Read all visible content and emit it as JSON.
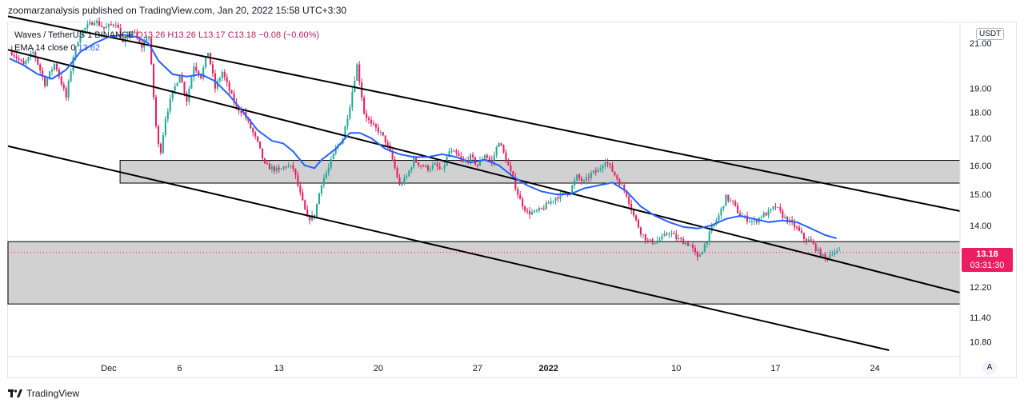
{
  "header": {
    "text": "zoomarzanalysis published on TradingView.com, Jan 20, 2022 15:58 UTC+3:30"
  },
  "legend": {
    "symbol": "Waves / TetherUS",
    "exchange_frag": "1",
    "exchange": "BINANCE",
    "open": "O13.26",
    "high": "H13.26",
    "low": "L13.17",
    "close": "C13.18",
    "change": "−0.08 (−0.60%)",
    "ema_label": "EMA 14 close 0",
    "ema_value": "13.62"
  },
  "currency": "USDT",
  "last_price": {
    "price": "13.18",
    "countdown": "03:31:30"
  },
  "auto_label": "A",
  "footer": {
    "brand": "TradingView"
  },
  "colors": {
    "up": "#26a69a",
    "down": "#e91e63",
    "ema": "#2962ff",
    "zone": "#d1d1d1",
    "line": "#000000"
  },
  "chart_data": {
    "type": "candlestick",
    "symbol": "WAVESUSDT",
    "timeframe": "4h",
    "x_ticks": [
      {
        "label": "Dec",
        "day": 0
      },
      {
        "label": "6",
        "day": 5
      },
      {
        "label": "13",
        "day": 12
      },
      {
        "label": "20",
        "day": 19
      },
      {
        "label": "27",
        "day": 26
      },
      {
        "label": "2022",
        "day": 31,
        "bold": true
      },
      {
        "label": "10",
        "day": 40
      },
      {
        "label": "17",
        "day": 47
      },
      {
        "label": "24",
        "day": 54
      }
    ],
    "y_ticks": [
      "21.00",
      "19.00",
      "18.00",
      "17.00",
      "16.00",
      "15.00",
      "14.00",
      "12.20",
      "11.40",
      "10.80"
    ],
    "y_scale": "log",
    "x_range_days": [
      -7.1,
      60.0
    ],
    "y_range": [
      10.45,
      22.0
    ],
    "last_price": 13.18,
    "zones": [
      {
        "from_day": 0.8,
        "to_day": 60.0,
        "low": 15.38,
        "high": 16.18
      },
      {
        "from_day": -7.1,
        "to_day": 60.0,
        "low": 11.75,
        "high": 13.5
      }
    ],
    "channel_lines": [
      {
        "x1": -7.1,
        "y1": 22.3,
        "x2": 60.0,
        "y2": 14.45
      },
      {
        "x1": -7.1,
        "y1": 20.7,
        "x2": 60.0,
        "y2": 12.05
      },
      {
        "x1": -7.1,
        "y1": 16.7,
        "x2": 55.0,
        "y2": 10.6
      }
    ],
    "ema14": [
      [
        -7.0,
        20.3
      ],
      [
        -6.0,
        20.0
      ],
      [
        -5.0,
        19.6
      ],
      [
        -4.0,
        19.4
      ],
      [
        -3.0,
        19.8
      ],
      [
        -2.0,
        20.6
      ],
      [
        -1.0,
        21.0
      ],
      [
        0.0,
        21.3
      ],
      [
        1.0,
        21.4
      ],
      [
        2.0,
        21.3
      ],
      [
        2.8,
        21.0
      ],
      [
        3.5,
        20.2
      ],
      [
        4.5,
        19.6
      ],
      [
        5.5,
        19.5
      ],
      [
        6.5,
        19.6
      ],
      [
        7.5,
        19.3
      ],
      [
        8.5,
        18.7
      ],
      [
        9.5,
        18.0
      ],
      [
        10.5,
        17.3
      ],
      [
        11.5,
        16.9
      ],
      [
        12.3,
        16.8
      ],
      [
        13.0,
        16.5
      ],
      [
        13.8,
        16.0
      ],
      [
        14.5,
        15.9
      ],
      [
        15.0,
        16.2
      ],
      [
        16.0,
        16.6
      ],
      [
        17.0,
        17.2
      ],
      [
        17.7,
        17.2
      ],
      [
        18.5,
        17.0
      ],
      [
        19.5,
        16.6
      ],
      [
        20.5,
        16.4
      ],
      [
        21.5,
        16.3
      ],
      [
        22.5,
        16.3
      ],
      [
        23.5,
        16.4
      ],
      [
        24.5,
        16.3
      ],
      [
        25.5,
        16.1
      ],
      [
        26.5,
        16.2
      ],
      [
        27.5,
        16.0
      ],
      [
        28.5,
        15.6
      ],
      [
        29.5,
        15.3
      ],
      [
        30.5,
        15.1
      ],
      [
        31.5,
        15.0
      ],
      [
        32.5,
        15.0
      ],
      [
        33.5,
        15.2
      ],
      [
        34.5,
        15.3
      ],
      [
        35.5,
        15.4
      ],
      [
        36.5,
        15.1
      ],
      [
        37.5,
        14.6
      ],
      [
        38.5,
        14.3
      ],
      [
        39.5,
        14.1
      ],
      [
        40.5,
        13.95
      ],
      [
        41.5,
        13.9
      ],
      [
        42.5,
        14.0
      ],
      [
        43.5,
        14.2
      ],
      [
        44.5,
        14.3
      ],
      [
        45.5,
        14.2
      ],
      [
        46.5,
        14.1
      ],
      [
        47.5,
        14.15
      ],
      [
        48.5,
        14.1
      ],
      [
        49.5,
        13.9
      ],
      [
        50.5,
        13.7
      ],
      [
        51.3,
        13.6
      ]
    ],
    "price_path": [
      [
        -7.0,
        20.7
      ],
      [
        -6.0,
        20.0
      ],
      [
        -5.3,
        20.6
      ],
      [
        -4.5,
        19.2
      ],
      [
        -3.8,
        20.1
      ],
      [
        -3.0,
        18.6
      ],
      [
        -2.5,
        20.4
      ],
      [
        -2.0,
        21.5
      ],
      [
        -1.0,
        22.1
      ],
      [
        -0.3,
        21.7
      ],
      [
        0.5,
        22.0
      ],
      [
        1.0,
        21.0
      ],
      [
        1.7,
        21.6
      ],
      [
        2.3,
        20.8
      ],
      [
        2.8,
        21.5
      ],
      [
        3.3,
        17.6
      ],
      [
        3.6,
        16.3
      ],
      [
        4.0,
        17.8
      ],
      [
        4.5,
        18.8
      ],
      [
        5.0,
        19.6
      ],
      [
        5.5,
        18.5
      ],
      [
        6.0,
        20.0
      ],
      [
        6.5,
        19.5
      ],
      [
        7.0,
        20.6
      ],
      [
        7.5,
        19.0
      ],
      [
        8.0,
        19.7
      ],
      [
        8.5,
        18.9
      ],
      [
        9.0,
        18.2
      ],
      [
        9.5,
        18.0
      ],
      [
        10.0,
        17.4
      ],
      [
        10.5,
        16.8
      ],
      [
        11.0,
        16.0
      ],
      [
        11.5,
        15.9
      ],
      [
        12.0,
        15.8
      ],
      [
        12.5,
        16.0
      ],
      [
        13.0,
        15.9
      ],
      [
        13.5,
        15.0
      ],
      [
        14.0,
        14.2
      ],
      [
        14.5,
        14.3
      ],
      [
        15.0,
        15.4
      ],
      [
        15.5,
        15.9
      ],
      [
        16.0,
        16.6
      ],
      [
        16.5,
        17.0
      ],
      [
        17.0,
        18.3
      ],
      [
        17.5,
        20.0
      ],
      [
        18.0,
        18.0
      ],
      [
        18.5,
        17.5
      ],
      [
        19.0,
        17.3
      ],
      [
        19.5,
        16.9
      ],
      [
        20.0,
        16.2
      ],
      [
        20.5,
        15.3
      ],
      [
        21.0,
        15.6
      ],
      [
        21.5,
        16.2
      ],
      [
        22.0,
        16.0
      ],
      [
        22.5,
        15.9
      ],
      [
        23.0,
        16.0
      ],
      [
        23.5,
        15.8
      ],
      [
        24.0,
        16.5
      ],
      [
        24.5,
        16.4
      ],
      [
        25.0,
        16.1
      ],
      [
        25.5,
        16.3
      ],
      [
        26.0,
        16.0
      ],
      [
        26.5,
        16.4
      ],
      [
        27.0,
        16.1
      ],
      [
        27.5,
        16.9
      ],
      [
        28.0,
        16.2
      ],
      [
        28.5,
        15.5
      ],
      [
        29.0,
        14.8
      ],
      [
        29.5,
        14.4
      ],
      [
        30.0,
        14.4
      ],
      [
        30.5,
        14.5
      ],
      [
        31.0,
        14.7
      ],
      [
        31.5,
        14.9
      ],
      [
        32.0,
        15.0
      ],
      [
        32.5,
        15.1
      ],
      [
        33.0,
        15.6
      ],
      [
        33.5,
        15.4
      ],
      [
        34.0,
        15.7
      ],
      [
        34.5,
        15.8
      ],
      [
        35.0,
        16.2
      ],
      [
        35.5,
        15.8
      ],
      [
        36.0,
        15.4
      ],
      [
        36.5,
        15.0
      ],
      [
        37.0,
        14.3
      ],
      [
        37.5,
        13.8
      ],
      [
        38.0,
        13.5
      ],
      [
        38.5,
        13.5
      ],
      [
        39.0,
        13.6
      ],
      [
        39.5,
        13.8
      ],
      [
        40.0,
        13.6
      ],
      [
        40.5,
        13.5
      ],
      [
        41.0,
        13.4
      ],
      [
        41.5,
        13.0
      ],
      [
        42.0,
        13.4
      ],
      [
        42.5,
        13.9
      ],
      [
        43.0,
        14.3
      ],
      [
        43.5,
        14.9
      ],
      [
        44.0,
        14.7
      ],
      [
        44.5,
        14.3
      ],
      [
        45.0,
        14.2
      ],
      [
        45.5,
        14.1
      ],
      [
        46.0,
        14.3
      ],
      [
        46.5,
        14.4
      ],
      [
        47.0,
        14.6
      ],
      [
        47.5,
        14.3
      ],
      [
        48.0,
        14.1
      ],
      [
        48.5,
        13.9
      ],
      [
        49.0,
        13.6
      ],
      [
        49.5,
        13.5
      ],
      [
        50.0,
        13.2
      ],
      [
        50.5,
        13.0
      ],
      [
        51.0,
        13.2
      ],
      [
        51.5,
        13.18
      ]
    ]
  }
}
